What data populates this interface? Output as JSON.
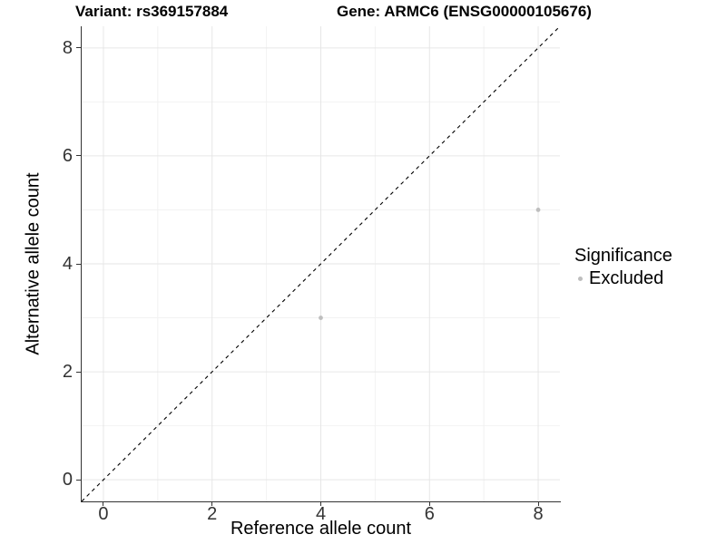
{
  "chart_data": {
    "type": "scatter",
    "titles": [
      "Variant: rs369157884",
      "Gene: ARMC6 (ENSG00000105676)"
    ],
    "xlabel": "Reference allele count",
    "ylabel": "Alternative allele count",
    "xlim": [
      -0.4,
      8.4
    ],
    "ylim": [
      -0.4,
      8.4
    ],
    "x_ticks": [
      0,
      2,
      4,
      6,
      8
    ],
    "y_ticks": [
      0,
      2,
      4,
      6,
      8
    ],
    "x_minor_ticks": [
      1,
      3,
      5,
      7
    ],
    "y_minor_ticks": [
      1,
      3,
      5,
      7
    ],
    "grid": "major and minor gridlines on white background",
    "series": [
      {
        "name": "Excluded",
        "marker": "circle",
        "color": "#bebebe",
        "points": [
          {
            "x": 4,
            "y": 3
          },
          {
            "x": 8,
            "y": 5
          }
        ]
      }
    ],
    "reference_line": {
      "equation": "y = x",
      "style": "dashed",
      "color": "#000000"
    },
    "legend": {
      "title": "Significance",
      "position": "right",
      "items": [
        {
          "label": "Excluded",
          "color": "#bebebe",
          "marker": "circle"
        }
      ]
    }
  },
  "colors": {
    "background": "#ffffff",
    "axis_line": "#333333",
    "tick_label": "#333333",
    "grid_major": "#e6e6e6",
    "grid_minor": "#f2f2f2",
    "title": "#000000"
  }
}
